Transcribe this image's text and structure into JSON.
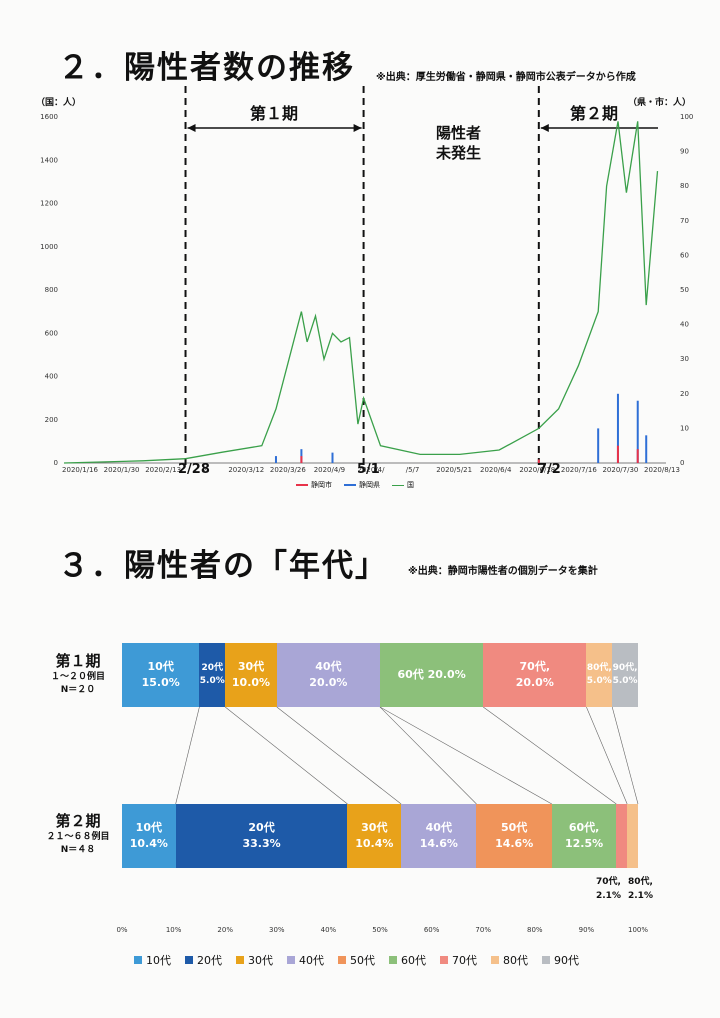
{
  "section2": {
    "title": "２．陽性者数の推移",
    "source": "※出典：厚生労働省・静岡県・静岡市公表データから作成",
    "left_unit": "（国：人）",
    "right_unit": "（県・市：人）",
    "period1": "第１期",
    "period2": "第２期",
    "no_cases": [
      "陽性者",
      "未発生"
    ],
    "date_marks": [
      "2/28",
      "5/1",
      "7/2"
    ],
    "left_ticks": [
      "0",
      "200",
      "400",
      "600",
      "800",
      "1000",
      "1200",
      "1400",
      "1600"
    ],
    "right_ticks": [
      "0",
      "10",
      "20",
      "30",
      "40",
      "50",
      "60",
      "70",
      "80",
      "90",
      "100"
    ],
    "x_ticks": [
      "2020/1/16",
      "2020/1/30",
      "2020/2/13",
      "2",
      "2020/3/12",
      "2020/3/26",
      "2020/4/9",
      "2020/4/",
      "/5/7",
      "2020/5/21",
      "2020/6/4",
      "2020/6/18",
      "2020/7/16",
      "2020/7/30",
      "2020/8/13"
    ],
    "legend": [
      "静岡市",
      "静岡県",
      "国"
    ],
    "colors": {
      "city": "#e8334a",
      "pref": "#2f6fd6",
      "national": "#3aa04a"
    }
  },
  "section3": {
    "title": "３．陽性者の「年代」",
    "source": "※出典：静岡市陽性者の個別データを集計",
    "period1": {
      "label": "第１期",
      "sub1": "１～２０例目",
      "sub2": "N＝２０"
    },
    "period2": {
      "label": "第２期",
      "sub1": "２１～６８例目",
      "sub2": "N＝４８"
    },
    "x_ticks": [
      "0%",
      "10%",
      "20%",
      "30%",
      "40%",
      "50%",
      "60%",
      "70%",
      "80%",
      "90%",
      "100%"
    ],
    "legend": [
      "10代",
      "20代",
      "30代",
      "40代",
      "50代",
      "60代",
      "70代",
      "80代",
      "90代"
    ],
    "colors": [
      "#3e9ad6",
      "#1e5aa8",
      "#e8a21a",
      "#a9a6d6",
      "#f0945a",
      "#8cc07a",
      "#f08a80",
      "#f5c08a",
      "#b9bdc2"
    ]
  },
  "chart_data": [
    {
      "type": "line",
      "title": "２．陽性者数の推移",
      "xlabel": "",
      "ylabel": "（国：人）",
      "ylabel_right": "（県・市：人）",
      "ylim": [
        0,
        1600
      ],
      "ylim_right": [
        0,
        100
      ],
      "grid": false,
      "legend_position": "bottom",
      "series": [
        {
          "name": "国",
          "axis": "left",
          "type": "line",
          "x": [
            "2020/1/16",
            "2020/2/13",
            "2020/2/28",
            "2020/3/12",
            "2020/3/26",
            "2020/3/31",
            "2020/4/4",
            "2020/4/9",
            "2020/4/11",
            "2020/4/14",
            "2020/4/17",
            "2020/4/20",
            "2020/4/23",
            "2020/4/26",
            "2020/4/29",
            "2020/5/1",
            "2020/5/7",
            "2020/5/21",
            "2020/6/4",
            "2020/6/18",
            "2020/7/2",
            "2020/7/9",
            "2020/7/16",
            "2020/7/23",
            "2020/7/26",
            "2020/7/30",
            "2020/8/2",
            "2020/8/6",
            "2020/8/9",
            "2020/8/13"
          ],
          "values": [
            0,
            10,
            20,
            50,
            80,
            250,
            450,
            700,
            560,
            680,
            480,
            600,
            560,
            580,
            180,
            300,
            80,
            40,
            40,
            60,
            160,
            250,
            450,
            700,
            1280,
            1580,
            1250,
            1580,
            730,
            1350
          ]
        },
        {
          "name": "静岡県",
          "axis": "right",
          "type": "bar",
          "x": [
            "2020/3/31",
            "2020/4/9",
            "2020/4/20",
            "2020/7/23",
            "2020/7/30",
            "2020/8/6",
            "2020/8/9"
          ],
          "values": [
            2,
            4,
            3,
            10,
            20,
            18,
            8
          ]
        },
        {
          "name": "静岡市",
          "axis": "right",
          "type": "bar",
          "x": [
            "2020/4/9",
            "2020/7/2",
            "2020/7/30",
            "2020/8/6"
          ],
          "values": [
            2,
            1,
            5,
            4
          ]
        }
      ]
    },
    {
      "type": "bar",
      "title": "３．陽性者の「年代」",
      "orientation": "horizontal",
      "stacked": true,
      "categories": [
        "第１期",
        "第２期"
      ],
      "xlim": [
        0,
        100
      ],
      "series": [
        {
          "name": "10代",
          "values": [
            15.0,
            10.4
          ]
        },
        {
          "name": "20代",
          "values": [
            5.0,
            33.3
          ]
        },
        {
          "name": "30代",
          "values": [
            10.0,
            10.4
          ]
        },
        {
          "name": "40代",
          "values": [
            20.0,
            14.6
          ]
        },
        {
          "name": "50代",
          "values": [
            0,
            14.6
          ]
        },
        {
          "name": "60代",
          "values": [
            20.0,
            12.5
          ]
        },
        {
          "name": "70代",
          "values": [
            20.0,
            2.1
          ]
        },
        {
          "name": "80代",
          "values": [
            5.0,
            2.1
          ]
        },
        {
          "name": "90代",
          "values": [
            5.0,
            0
          ]
        }
      ],
      "data_labels": {
        "period1": [
          [
            "10代",
            "15.0%"
          ],
          [
            "20代",
            "5.0%"
          ],
          [
            "30代",
            "10.0%"
          ],
          [
            "40代",
            "20.0%"
          ],
          [],
          [
            "60代 20.0%",
            ""
          ],
          [
            "70代,",
            "20.0%"
          ],
          [
            "80代,",
            "5.0%"
          ],
          [
            "90代,",
            "5.0%"
          ]
        ],
        "period2": [
          [
            "10代",
            "10.4%"
          ],
          [
            "20代",
            "33.3%"
          ],
          [
            "30代",
            "10.4%"
          ],
          [
            "40代",
            "14.6%"
          ],
          [
            "50代",
            "14.6%"
          ],
          [
            "60代,",
            "12.5%"
          ],
          [],
          [],
          []
        ],
        "period2_outside": [
          [
            "70代,",
            "2.1%"
          ],
          [
            "80代,",
            "2.1%"
          ]
        ]
      }
    }
  ]
}
